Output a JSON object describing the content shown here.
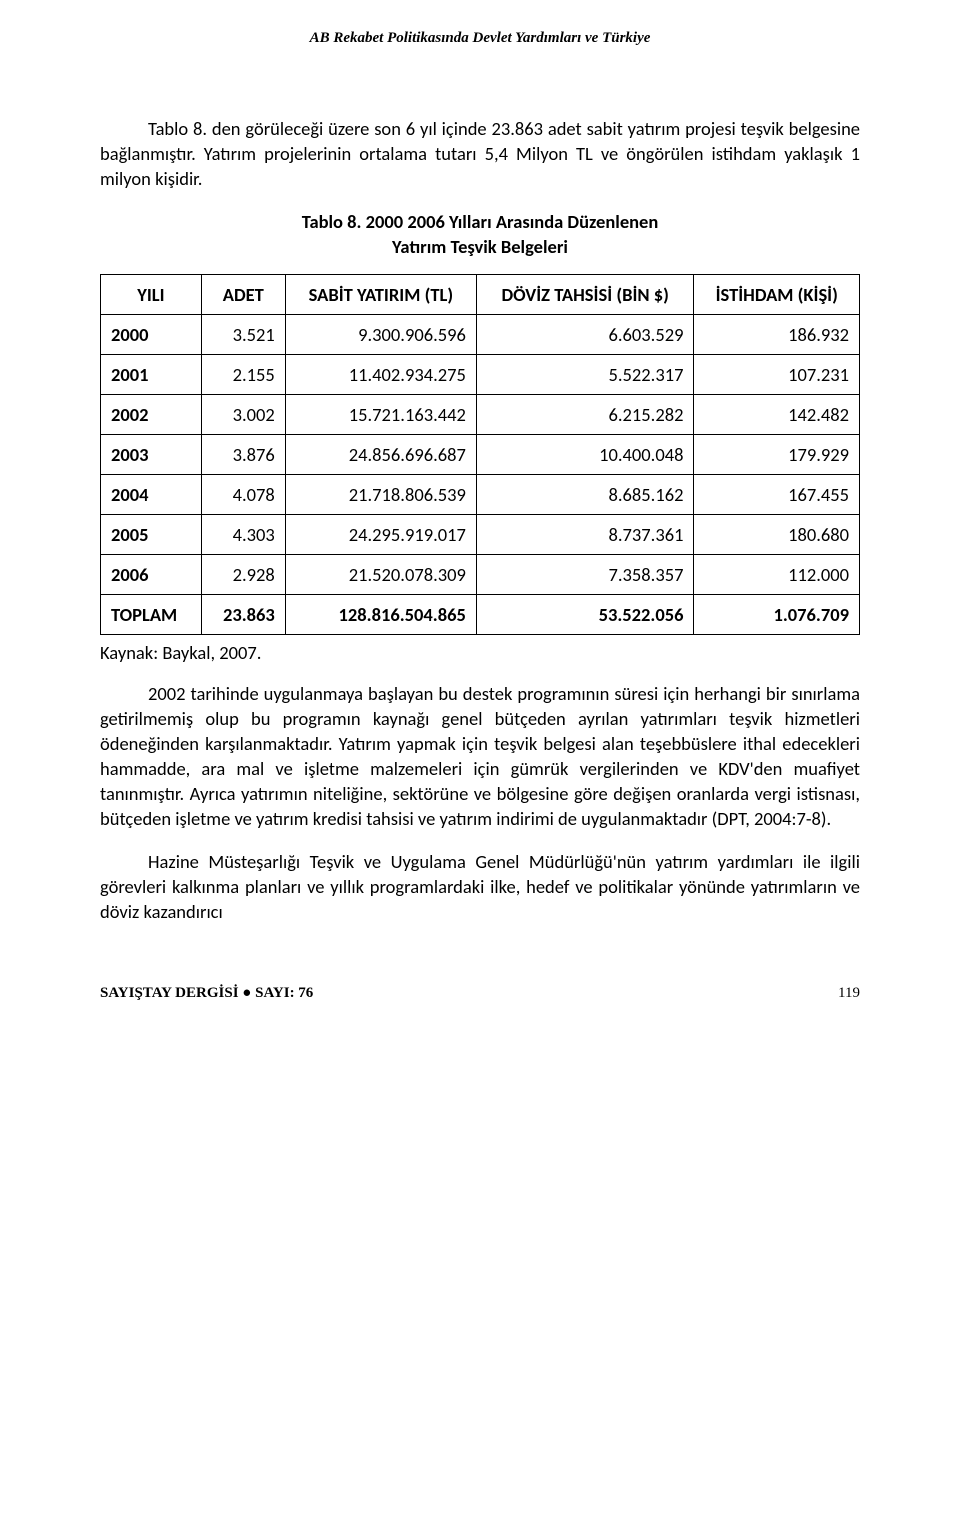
{
  "running_header": "AB Rekabet Politikasında Devlet Yardımları ve Türkiye",
  "intro_paragraph": "Tablo 8. den görüleceği üzere son 6 yıl içinde 23.863 adet sabit yatırım projesi teşvik belgesine bağlanmıştır. Yatırım projelerinin ortalama tutarı 5,4 Milyon TL ve öngörülen istihdam yaklaşık 1 milyon kişidir.",
  "table_title_line1": "Tablo 8. 2000 2006 Yılları Arasında Düzenlenen",
  "table_title_line2": "Yatırım Teşvik Belgeleri",
  "table": {
    "type": "table",
    "border_color": "#000000",
    "background_color": "#ffffff",
    "fontsize": 18.5,
    "columns": [
      {
        "label": "YILI",
        "align_data": "left"
      },
      {
        "label": "ADET",
        "align_data": "right"
      },
      {
        "label": "SABİT YATIRIM (TL)",
        "align_data": "right"
      },
      {
        "label": "DÖVİZ TAHSİSİ (BİN $)",
        "align_data": "right"
      },
      {
        "label": "İSTİHDAM (KİŞİ)",
        "align_data": "right"
      }
    ],
    "rows": [
      [
        "2000",
        "3.521",
        "9.300.906.596",
        "6.603.529",
        "186.932"
      ],
      [
        "2001",
        "2.155",
        "11.402.934.275",
        "5.522.317",
        "107.231"
      ],
      [
        "2002",
        "3.002",
        "15.721.163.442",
        "6.215.282",
        "142.482"
      ],
      [
        "2003",
        "3.876",
        "24.856.696.687",
        "10.400.048",
        "179.929"
      ],
      [
        "2004",
        "4.078",
        "21.718.806.539",
        "8.685.162",
        "167.455"
      ],
      [
        "2005",
        "4.303",
        "24.295.919.017",
        "8.737.361",
        "180.680"
      ],
      [
        "2006",
        "2.928",
        "21.520.078.309",
        "7.358.357",
        "112.000"
      ]
    ],
    "total_row": [
      "TOPLAM",
      "23.863",
      "128.816.504.865",
      "53.522.056",
      "1.076.709"
    ]
  },
  "source_line": "Kaynak: Baykal, 2007.",
  "body_para_1": "2002 tarihinde uygulanmaya başlayan bu destek programının süresi için herhangi bir sınırlama getirilmemiş olup bu programın kaynağı genel bütçeden ayrılan yatırımları teşvik hizmetleri ödeneğinden karşılanmaktadır. Yatırım yapmak için teşvik belgesi alan teşebbüslere ithal edecekleri hammadde, ara mal ve işletme malzemeleri için gümrük vergilerinden ve KDV'den muafiyet tanınmıştır. Ayrıca yatırımın niteliğine, sektörüne ve bölgesine göre değişen oranlarda vergi istisnası, bütçeden işletme ve yatırım kredisi tahsisi ve yatırım indirimi de uygulanmaktadır (DPT, 2004:7-8).",
  "body_para_2": "Hazine Müsteşarlığı Teşvik ve Uygulama Genel Müdürlüğü'nün yatırım yardımları ile ilgili görevleri kalkınma planları ve yıllık programlardaki ilke, hedef ve politikalar yönünde yatırımların ve döviz kazandırıcı",
  "footer_journal": "SAYIŞTAY DERGİSİ ● SAYI: 76",
  "footer_page": "119"
}
